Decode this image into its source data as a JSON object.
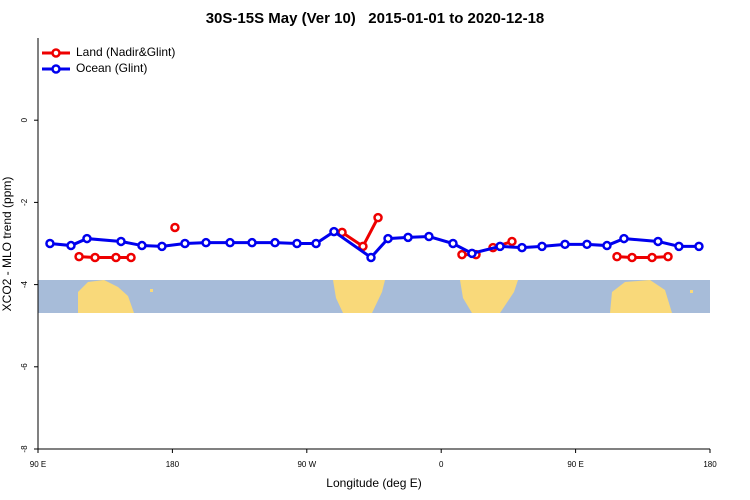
{
  "chart_data": {
    "type": "line",
    "title": "30S-15S May (Ver 10)   2015-01-01 to 2020-12-18",
    "xlabel": "Longitude (deg E)",
    "ylabel": "XCO2 - MLO trend (ppm)",
    "xlim": [
      90,
      540
    ],
    "xticks": [
      {
        "value": 90,
        "label": "90 E"
      },
      180,
      {
        "value": 270,
        "label": "90 W"
      },
      {
        "value": 360,
        "label": "0"
      },
      {
        "value": 450,
        "label": "90 E"
      },
      {
        "value": 540,
        "label": "180"
      }
    ],
    "ylim": [
      -8,
      2
    ],
    "yticks": [
      -8,
      -6,
      -4,
      -2,
      0
    ],
    "legend": "top-left",
    "series": [
      {
        "name": "Land (Nadir&Glint)",
        "color": "#ee0000",
        "x": [
          117.5,
          128.2,
          142.2,
          152.3,
          null,
          181.7,
          null,
          293.6,
          307.6,
          317.7,
          null,
          373.9,
          383.3,
          null,
          394.7,
          407.4,
          null,
          477.7,
          487.8,
          501.2,
          511.9
        ],
        "values": [
          -3.32,
          -3.34,
          -3.34,
          -3.34,
          null,
          -2.61,
          null,
          -2.73,
          -3.07,
          -2.37,
          null,
          -3.27,
          -3.27,
          null,
          -3.1,
          -2.95,
          null,
          -3.32,
          -3.34,
          -3.34,
          -3.32
        ]
      },
      {
        "name": "Ocean (Glint)",
        "color": "#0000ee",
        "x": [
          98.0,
          112.1,
          122.8,
          145.6,
          159.6,
          173.0,
          188.4,
          202.5,
          218.6,
          233.3,
          248.7,
          263.4,
          276.2,
          288.2,
          313.0,
          324.4,
          337.8,
          351.8,
          367.9,
          380.6,
          399.4,
          414.1,
          427.5,
          442.9,
          457.6,
          471.0,
          482.4,
          505.2,
          519.2,
          532.6
        ],
        "values": [
          -3.0,
          -3.05,
          -2.88,
          -2.95,
          -3.05,
          -3.07,
          -3.0,
          -2.98,
          -2.98,
          -2.98,
          -2.98,
          -3.0,
          -3.0,
          -2.71,
          -3.34,
          -2.88,
          -2.85,
          -2.83,
          -3.0,
          -3.24,
          -3.07,
          -3.1,
          -3.07,
          -3.02,
          -3.02,
          -3.05,
          -2.88,
          -2.95,
          -3.07,
          -3.07
        ]
      }
    ]
  }
}
